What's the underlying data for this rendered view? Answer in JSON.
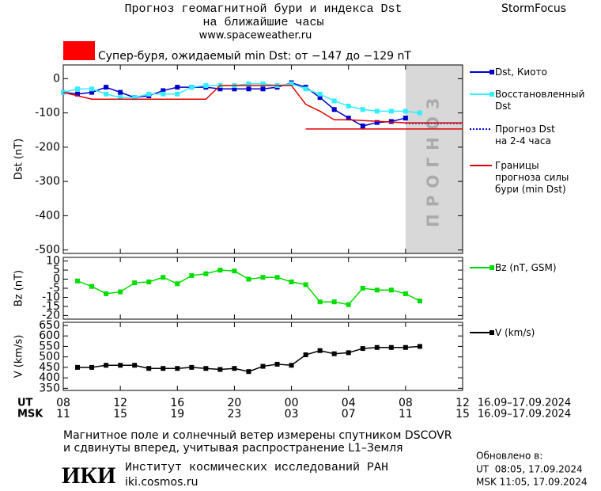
{
  "header": {
    "title_line1": "Прогноз геомагнитной бури и индекса Dst",
    "title_line2": "на ближайшие часы",
    "url": "www.spaceweather.ru",
    "brand": "StormFocus"
  },
  "alert": {
    "text": "Супер-буря, ожидаемый min Dst: от −147 до −129 nT",
    "color": "#ff0000"
  },
  "chart_data": [
    {
      "type": "line",
      "y_label": "Dst (nT)",
      "xlim": [
        8,
        36
      ],
      "ylim": [
        -510,
        40
      ],
      "yticks": [
        0,
        -100,
        -200,
        -300,
        -400,
        -500
      ],
      "forecast_span": [
        32,
        36
      ],
      "forecast_label": "ПРОГНОЗ",
      "series": [
        {
          "name": "Dst, Киото",
          "color": "#0000cc",
          "markers": true,
          "x": [
            8,
            9,
            10,
            11,
            12,
            13,
            14,
            15,
            16,
            17,
            18,
            19,
            20,
            21,
            22,
            23,
            24,
            25,
            26,
            27,
            28,
            29,
            30,
            31,
            32
          ],
          "values": [
            -40,
            -45,
            -40,
            -25,
            -40,
            -55,
            -50,
            -35,
            -25,
            -25,
            -25,
            -30,
            -30,
            -30,
            -30,
            -25,
            -12,
            -25,
            -55,
            -90,
            -115,
            -138,
            -128,
            -125,
            -115
          ]
        },
        {
          "name": "Восстановленный\nDst",
          "color": "#33eeff",
          "markers": true,
          "x": [
            8,
            9,
            10,
            11,
            12,
            13,
            14,
            15,
            16,
            17,
            18,
            19,
            20,
            21,
            22,
            23,
            24,
            25,
            26,
            27,
            28,
            29,
            30,
            31,
            32,
            33
          ],
          "values": [
            -40,
            -30,
            -30,
            -45,
            -55,
            -55,
            -45,
            -45,
            -45,
            -25,
            -20,
            -20,
            -20,
            -15,
            -15,
            -20,
            -15,
            -30,
            -45,
            -65,
            -80,
            -90,
            -95,
            -95,
            -95,
            -100
          ]
        },
        {
          "name": "Прогноз Dst\nна 2-4 часа",
          "color": "#0000cc",
          "dotted": true,
          "x": [
            32,
            36
          ],
          "values": [
            -130,
            -130
          ]
        },
        {
          "name": "Границы\nпрогноза силы\nбури (min Dst)",
          "color": "#e00000",
          "x": [
            8,
            10,
            18,
            19,
            24,
            25,
            26,
            27,
            28,
            32,
            36,
            null,
            25,
            36
          ],
          "values": [
            -40,
            -60,
            -60,
            -20,
            -20,
            -75,
            -95,
            -120,
            -120,
            -129,
            -129,
            null,
            -147,
            -147
          ]
        }
      ]
    },
    {
      "type": "line",
      "y_label": "Bz (nT)",
      "xlim": [
        8,
        36
      ],
      "ylim": [
        -22,
        12
      ],
      "yticks": [
        10,
        5,
        0,
        -5,
        -10,
        -15,
        -20
      ],
      "series": [
        {
          "name": "Bz (nT, GSM)",
          "color": "#00dd00",
          "markers": true,
          "x": [
            9,
            10,
            11,
            12,
            13,
            14,
            15,
            16,
            17,
            18,
            19,
            20,
            21,
            22,
            23,
            24,
            25,
            26,
            27,
            28,
            29,
            30,
            31,
            32,
            33
          ],
          "values": [
            -1,
            -4,
            -8,
            -7,
            -2,
            -1.5,
            1,
            -2.5,
            2,
            3,
            5,
            4.5,
            0,
            1,
            1,
            -1.5,
            -3,
            -12.5,
            -12.5,
            -14,
            -5,
            -6,
            -6,
            -8,
            -12
          ]
        }
      ]
    },
    {
      "type": "line",
      "y_label": "V (km/s)",
      "xlim": [
        8,
        36
      ],
      "ylim": [
        340,
        665
      ],
      "yticks": [
        650,
        600,
        550,
        500,
        450,
        400,
        350
      ],
      "xticks": [
        {
          "value": 8,
          "label": "08"
        },
        12,
        16,
        20,
        {
          "value": 24,
          "label": "00"
        },
        {
          "value": 28,
          "label": "04"
        },
        {
          "value": 32,
          "label": "08"
        },
        {
          "value": 36,
          "label": "12"
        }
      ],
      "xticks_msk": [
        "11",
        "15",
        "19",
        "23",
        "03",
        "07",
        "11",
        "15"
      ],
      "x_label_ut": "UT",
      "x_label_msk": "MSK",
      "date_range_ut": "16.09–17.09.2024",
      "date_range_msk": "16.09–17.09.2024",
      "series": [
        {
          "name": "V (km/s)",
          "color": "#000000",
          "markers": true,
          "x": [
            9,
            10,
            11,
            12,
            13,
            14,
            15,
            16,
            17,
            18,
            19,
            20,
            21,
            22,
            23,
            24,
            25,
            26,
            27,
            28,
            29,
            30,
            31,
            32,
            33
          ],
          "values": [
            450,
            450,
            460,
            460,
            460,
            445,
            445,
            445,
            450,
            445,
            440,
            445,
            430,
            455,
            465,
            460,
            510,
            530,
            515,
            520,
            540,
            545,
            545,
            545,
            550
          ]
        }
      ]
    }
  ],
  "footer": {
    "note_line1": "Магнитное поле и солнечный ветер измерены спутником DSCOVR",
    "note_line2": "и сдвинуты вперед, учитывая распространение L1–Земля",
    "logo": "ИКИ",
    "institute": "Институт космических исследований РАН",
    "site": "iki.cosmos.ru",
    "updated_label": "Обновлено в:",
    "updated_ut": "UT  08:05, 17.09.2024",
    "updated_msk": "MSK 11:05, 17.09.2024"
  }
}
